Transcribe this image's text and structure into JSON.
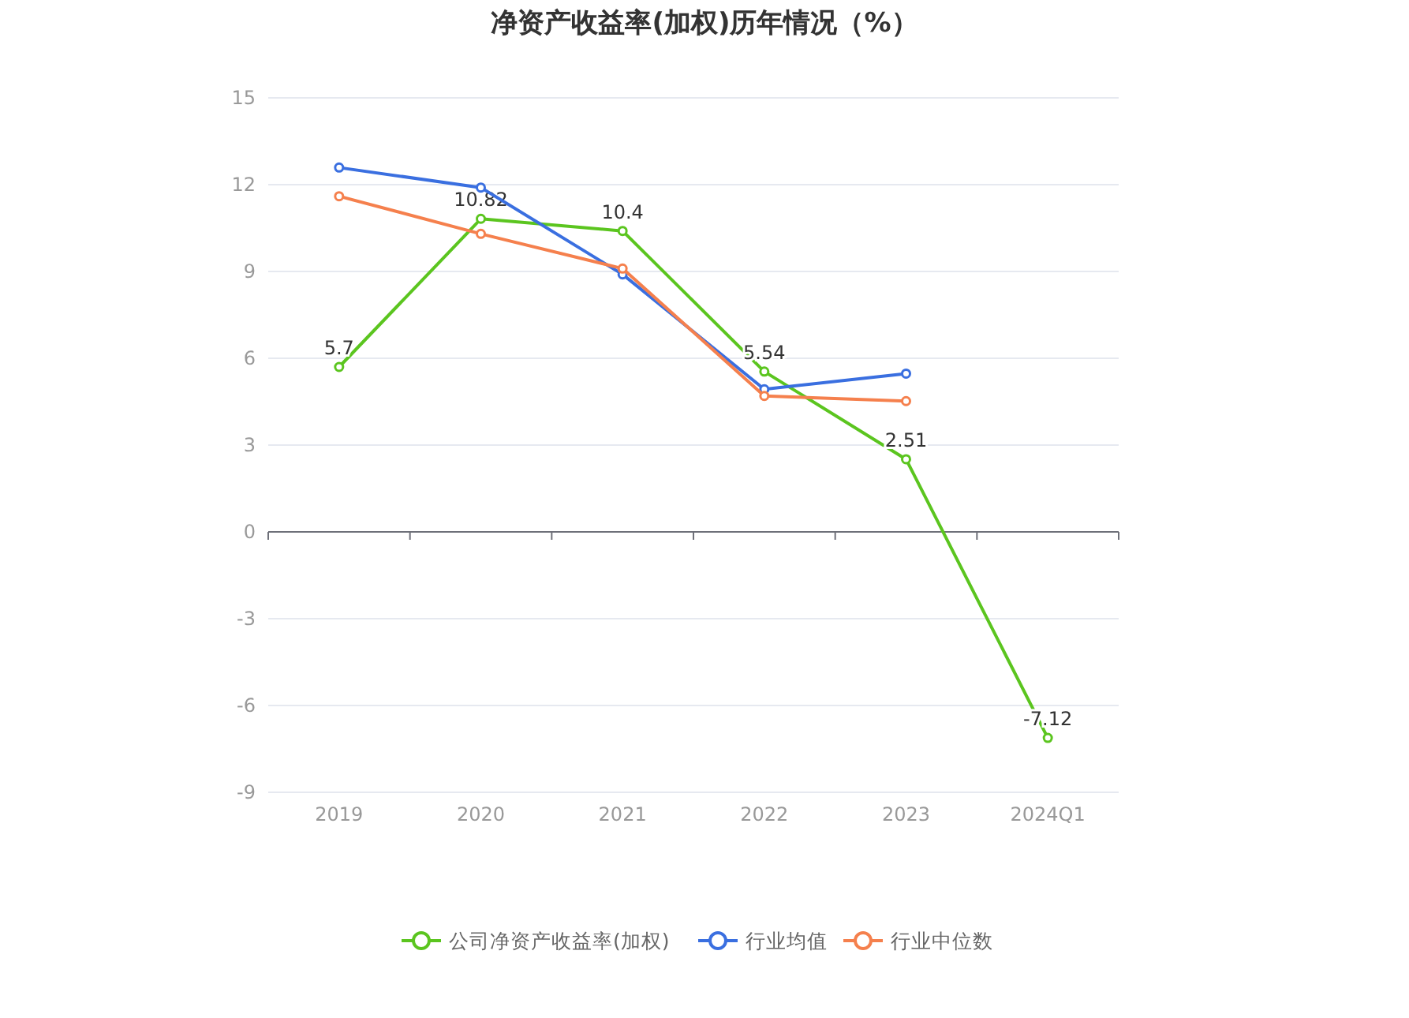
{
  "chart_data": {
    "type": "line",
    "title": "净资产收益率(加权)历年情况（%）",
    "categories": [
      "2019",
      "2020",
      "2021",
      "2022",
      "2023",
      "2024Q1"
    ],
    "series": [
      {
        "name": "公司净资产收益率(加权)",
        "color": "#5bc51f",
        "values": [
          5.7,
          10.82,
          10.4,
          5.54,
          2.51,
          -7.12
        ],
        "value_labels": [
          "5.7",
          "10.82",
          "10.4",
          "5.54",
          "2.51",
          "-7.12"
        ]
      },
      {
        "name": "行业均值",
        "color": "#3a6fe0",
        "values": [
          12.59,
          11.9,
          8.9,
          4.93,
          5.47,
          null
        ]
      },
      {
        "name": "行业中位数",
        "color": "#f5804d",
        "values": [
          11.6,
          10.3,
          9.1,
          4.7,
          4.52,
          null
        ]
      }
    ],
    "ylim": [
      -9,
      15
    ],
    "yticks": [
      -9,
      -6,
      -3,
      0,
      3,
      6,
      9,
      12,
      15
    ],
    "grid": "y",
    "legend": "bottom",
    "marker": "circle",
    "line_style": "solid"
  }
}
